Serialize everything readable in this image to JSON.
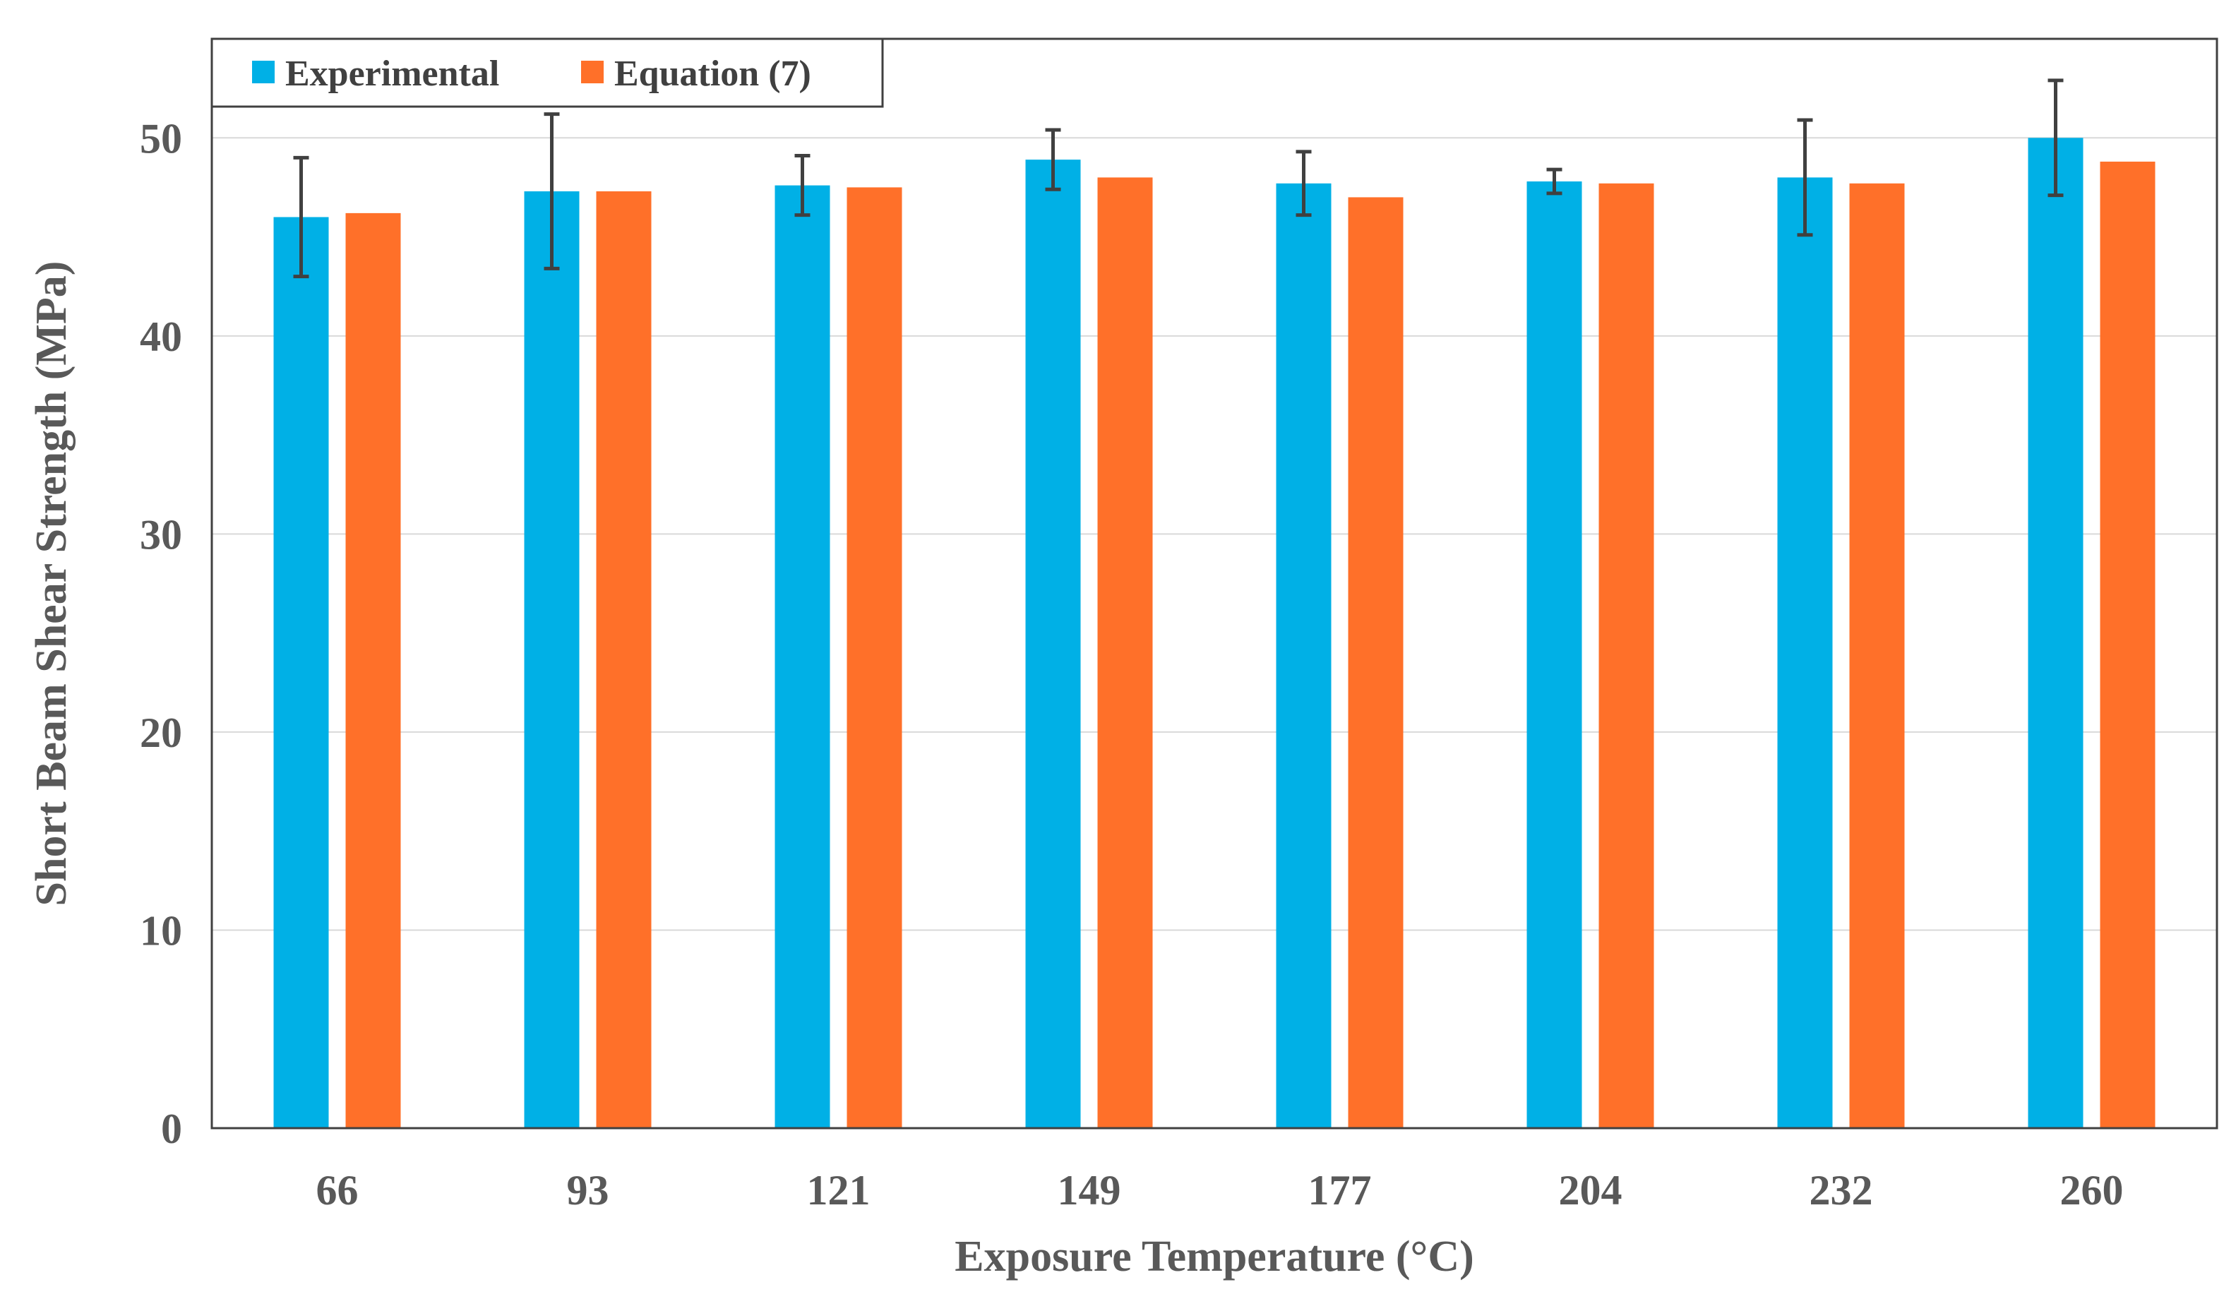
{
  "chart_data": {
    "type": "bar",
    "title": "",
    "xlabel": "Exposure Temperature (°C)",
    "ylabel": "Short Beam Shear Strength (MPa)",
    "categories": [
      "66",
      "93",
      "121",
      "149",
      "177",
      "204",
      "232",
      "260"
    ],
    "ylim": [
      0,
      55
    ],
    "yticks": [
      0,
      10,
      20,
      30,
      40,
      50
    ],
    "grid": true,
    "legend_position": "top-left",
    "series": [
      {
        "name": "Experimental",
        "color": "#00B0E6",
        "values": [
          46.0,
          47.3,
          47.6,
          48.9,
          47.7,
          47.8,
          48.0,
          50.0
        ],
        "error": [
          3.0,
          3.9,
          1.5,
          1.5,
          1.6,
          0.6,
          2.9,
          2.9
        ]
      },
      {
        "name": "Equation (7)",
        "color": "#FF7029",
        "values": [
          46.2,
          47.3,
          47.5,
          48.0,
          47.0,
          47.7,
          47.7,
          48.8
        ]
      }
    ]
  }
}
